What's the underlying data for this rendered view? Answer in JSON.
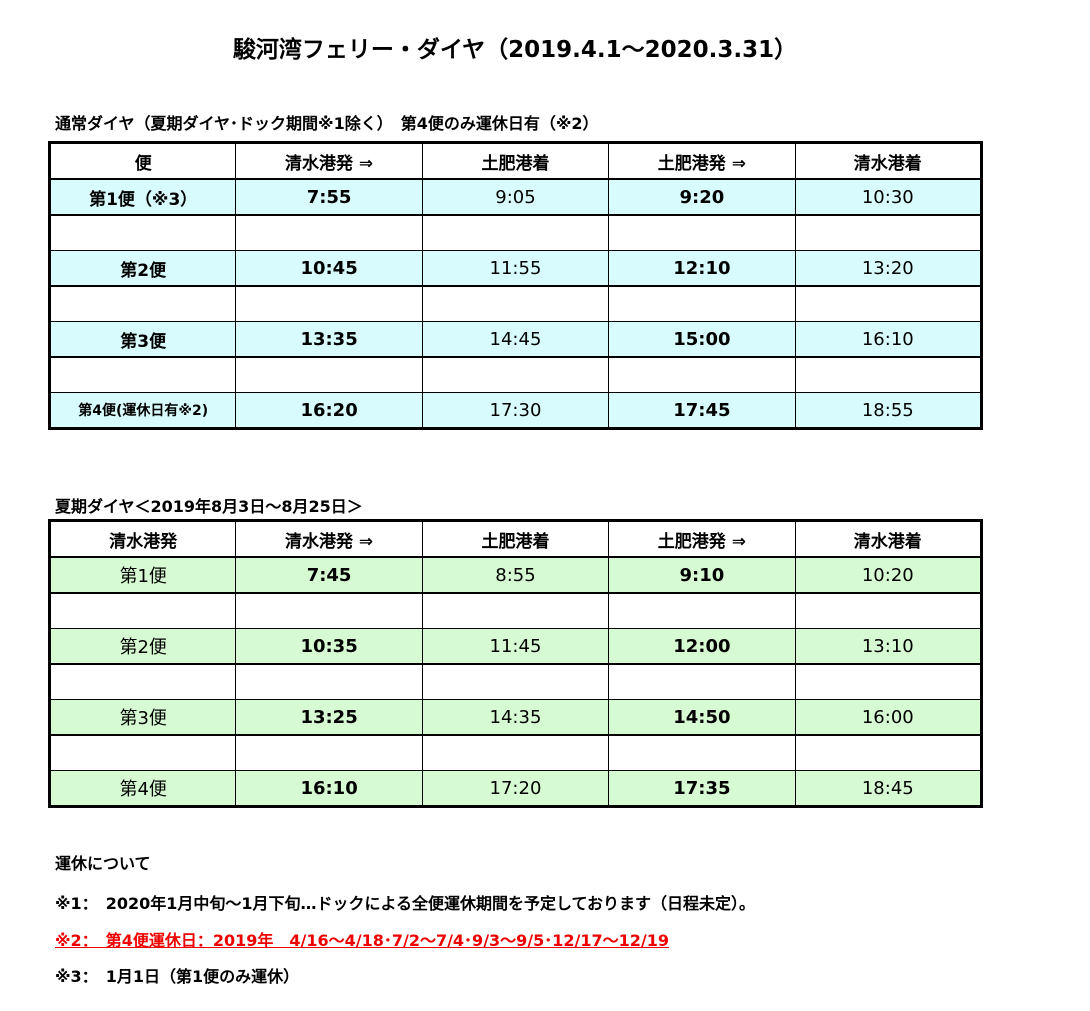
{
  "title": "駿河湾フェリー・ダイヤ（2019.4.1～2020.3.31）",
  "sections": [
    {
      "label": "通常ダイヤ（夏期ダイヤ･ドック期間※1除く）　第4便のみ運休日有（※2）",
      "table": {
        "header": [
          "便",
          "清水港発 ⇒",
          "土肥港着",
          "土肥港発 ⇒",
          "清水港着"
        ],
        "rows": [
          [
            "第1便（※3）",
            "7:55",
            "9:05",
            "9:20",
            "10:30"
          ],
          [
            "第2便",
            "10:45",
            "11:55",
            "12:10",
            "13:20"
          ],
          [
            "第3便",
            "13:35",
            "14:45",
            "15:00",
            "16:10"
          ],
          [
            "第4便(運休日有※2)",
            "16:20",
            "17:30",
            "17:45",
            "18:55"
          ]
        ]
      }
    },
    {
      "label": "夏期ダイヤ＜2019年8月3日～8月25日＞",
      "table": {
        "header": [
          "清水港発",
          "清水港発 ⇒",
          "土肥港着",
          "土肥港発 ⇒",
          "清水港着"
        ],
        "rows": [
          [
            "第1便",
            "7:45",
            "8:55",
            "9:10",
            "10:20"
          ],
          [
            "第2便",
            "10:35",
            "11:45",
            "12:00",
            "13:10"
          ],
          [
            "第3便",
            "13:25",
            "14:35",
            "14:50",
            "16:00"
          ],
          [
            "第4便",
            "16:10",
            "17:20",
            "17:35",
            "18:45"
          ]
        ]
      }
    }
  ],
  "notes": {
    "heading": "運休について",
    "items": [
      "※1：　2020年1月中旬～1月下旬…ドックによる全便運休期間を予定しております（日程未定）。",
      "※2：　第4便運休日：2019年　4/16～4/18･7/2～7/4･9/3～9/5･12/17～12/19",
      "※3：　1月1日（第1便のみ運休）"
    ]
  }
}
